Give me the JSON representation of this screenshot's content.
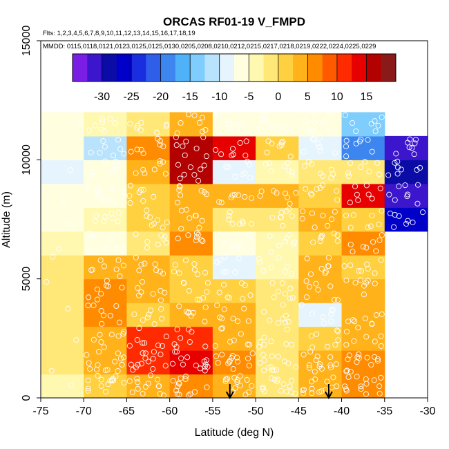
{
  "chart_data": {
    "type": "heatmap",
    "title": "ORCAS RF01-19 V_FMPD",
    "flights_note": "Flts: 1,2,3,4,5,6,7,8,9,10,11,12,13,14,15,16,17,18,19",
    "dates_note": "MMDD: 0115,0118,0121,0123,0125,0125,0130,0205,0208,0210,0212,0215,0217,0218,0219,0222,0224,0225,0229",
    "xlabel": "Latitude (deg N)",
    "ylabel": "Altitude (m)",
    "xlim": [
      -75,
      -30
    ],
    "ylim": [
      0,
      15000
    ],
    "x_ticks": [
      -75,
      -70,
      -65,
      -60,
      -55,
      -50,
      -45,
      -40,
      -35,
      -30
    ],
    "y_ticks": [
      0,
      5000,
      10000,
      15000
    ],
    "x_tick_labels": [
      "-75",
      "-70",
      "-65",
      "-60",
      "-55",
      "-50",
      "-45",
      "-40",
      "-35",
      "-30"
    ],
    "y_tick_labels": [
      "0",
      "5000",
      "10000",
      "15000"
    ],
    "colorbar": {
      "range": [
        -35,
        20
      ],
      "tick_values": [
        -30,
        -25,
        -20,
        -15,
        -10,
        -5,
        0,
        5,
        10,
        15
      ],
      "tick_labels": [
        "-30",
        "-25",
        "-20",
        "-15",
        "-10",
        "-5",
        "0",
        "5",
        "10",
        "15"
      ],
      "colors": [
        "#7a1ee6",
        "#3c16cc",
        "#0b0ba6",
        "#0000c8",
        "#1a2ee0",
        "#2f5ee8",
        "#3d86f0",
        "#4fb2f8",
        "#7ecdfc",
        "#b9e3fd",
        "#e6f5fd",
        "#ffffe0",
        "#fff8b0",
        "#ffe878",
        "#ffd040",
        "#ffb21a",
        "#ff8c00",
        "#ff5a00",
        "#ff2a00",
        "#e60000",
        "#b30000",
        "#8a1a1a"
      ]
    },
    "lat_edges": [
      -75,
      -70,
      -65,
      -60,
      -55,
      -50,
      -45,
      -40,
      -35,
      -30
    ],
    "alt_edges": [
      0,
      1000,
      2000,
      3000,
      4000,
      5000,
      6000,
      7000,
      8000,
      9000,
      10000,
      11000,
      12000
    ],
    "cells": [
      {
        "lat_bin": 0,
        "values": [
          -4.5,
          -2.5,
          -1.5,
          -0.5,
          -0.5,
          -1.0,
          -4.5,
          -6.0,
          -7.0,
          -8.0,
          -6.0,
          -5.5
        ]
      },
      {
        "lat_bin": 1,
        "values": [
          2.5,
          3.5,
          4.5,
          5.5,
          6.5,
          4.5,
          -6.5,
          -4.0,
          -6.5,
          -7.5,
          -10.5,
          -3.5
        ]
      },
      {
        "lat_bin": 2,
        "values": [
          3.5,
          10.5,
          11.0,
          0.5,
          4.0,
          3.5,
          -1.5,
          1.5,
          2.0,
          3.0,
          5.0,
          -2.0
        ]
      },
      {
        "lat_bin": 3,
        "values": [
          5.5,
          12.5,
          12.0,
          3.0,
          1.5,
          2.0,
          6.5,
          4.0,
          4.0,
          15.5,
          16.5,
          3.0
        ]
      },
      {
        "lat_bin": 4,
        "values": [
          3.0,
          5.5,
          4.5,
          3.5,
          2.0,
          -9.0,
          -7.0,
          -0.5,
          3.5,
          -9.5,
          12.5,
          -6.5
        ]
      },
      {
        "lat_bin": 5,
        "values": [
          -1.0,
          -1.0,
          -1.5,
          -1.0,
          -2.0,
          -3.5,
          -5.0,
          -2.0,
          3.5,
          -4.0,
          2.0,
          -6.0
        ]
      },
      {
        "lat_bin": 6,
        "values": [
          3.5,
          4.5,
          2.0,
          -9.5,
          4.0,
          3.5,
          2.5,
          3.5,
          1.5,
          -2.5,
          -10.0,
          -6.0
        ]
      },
      {
        "lat_bin": 7,
        "values": [
          7.0,
          5.0,
          3.5,
          3.5,
          4.5,
          2.5,
          5.5,
          2.5,
          13.0,
          -2.0,
          -20.0,
          -13.0
        ]
      },
      {
        "lat_bin": 8,
        "values": [
          null,
          null,
          null,
          null,
          null,
          null,
          null,
          -26.0,
          -32.0,
          -28.0,
          -30.5,
          null
        ]
      }
    ],
    "arrows_at_lat": [
      -53,
      -41.5
    ]
  }
}
